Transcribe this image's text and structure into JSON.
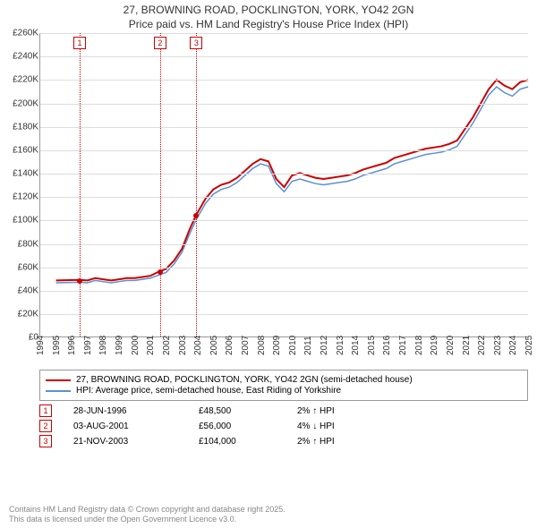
{
  "title_line1": "27, BROWNING ROAD, POCKLINGTON, YORK, YO42 2GN",
  "title_line2": "Price paid vs. HM Land Registry's House Price Index (HPI)",
  "chart": {
    "type": "line",
    "ylim": [
      0,
      260000
    ],
    "ytick_step": 20000,
    "yticks": [
      "£0",
      "£20K",
      "£40K",
      "£60K",
      "£80K",
      "£100K",
      "£120K",
      "£140K",
      "£160K",
      "£180K",
      "£200K",
      "£220K",
      "£240K",
      "£260K"
    ],
    "xyears": [
      1994,
      1995,
      1996,
      1997,
      1998,
      1999,
      2000,
      2001,
      2002,
      2003,
      2004,
      2005,
      2006,
      2007,
      2008,
      2009,
      2010,
      2011,
      2012,
      2013,
      2014,
      2015,
      2016,
      2017,
      2018,
      2019,
      2020,
      2021,
      2022,
      2023,
      2024,
      2025
    ],
    "background_color": "#ffffff",
    "grid_color": "#dddddd",
    "series": {
      "price": {
        "color": "#cc0000",
        "width": 2,
        "label": "27, BROWNING ROAD, POCKLINGTON, YORK, YO42 2GN (semi-detached house)",
        "points": [
          [
            1995.0,
            48000
          ],
          [
            1996.5,
            48500
          ],
          [
            1997.0,
            48000
          ],
          [
            1997.5,
            50000
          ],
          [
            1998.0,
            49000
          ],
          [
            1998.5,
            48000
          ],
          [
            1999.0,
            49000
          ],
          [
            1999.5,
            50000
          ],
          [
            2000.0,
            50000
          ],
          [
            2000.5,
            51000
          ],
          [
            2001.0,
            52000
          ],
          [
            2001.6,
            56000
          ],
          [
            2002.0,
            58000
          ],
          [
            2002.5,
            65000
          ],
          [
            2003.0,
            75000
          ],
          [
            2003.5,
            92000
          ],
          [
            2003.9,
            104000
          ],
          [
            2004.5,
            118000
          ],
          [
            2005.0,
            126000
          ],
          [
            2005.5,
            130000
          ],
          [
            2006.0,
            132000
          ],
          [
            2006.5,
            136000
          ],
          [
            2007.0,
            142000
          ],
          [
            2007.5,
            148000
          ],
          [
            2008.0,
            152000
          ],
          [
            2008.5,
            150000
          ],
          [
            2009.0,
            135000
          ],
          [
            2009.5,
            128000
          ],
          [
            2010.0,
            138000
          ],
          [
            2010.5,
            140000
          ],
          [
            2011.0,
            138000
          ],
          [
            2011.5,
            136000
          ],
          [
            2012.0,
            135000
          ],
          [
            2012.5,
            136000
          ],
          [
            2013.0,
            137000
          ],
          [
            2013.5,
            138000
          ],
          [
            2014.0,
            140000
          ],
          [
            2014.5,
            143000
          ],
          [
            2015.0,
            145000
          ],
          [
            2015.5,
            147000
          ],
          [
            2016.0,
            149000
          ],
          [
            2016.5,
            153000
          ],
          [
            2017.0,
            155000
          ],
          [
            2017.5,
            157000
          ],
          [
            2018.0,
            159000
          ],
          [
            2018.5,
            161000
          ],
          [
            2019.0,
            162000
          ],
          [
            2019.5,
            163000
          ],
          [
            2020.0,
            165000
          ],
          [
            2020.5,
            168000
          ],
          [
            2021.0,
            178000
          ],
          [
            2021.5,
            188000
          ],
          [
            2022.0,
            200000
          ],
          [
            2022.5,
            212000
          ],
          [
            2023.0,
            220000
          ],
          [
            2023.5,
            215000
          ],
          [
            2024.0,
            212000
          ],
          [
            2024.5,
            218000
          ],
          [
            2025.0,
            220000
          ]
        ]
      },
      "hpi": {
        "color": "#5b8fd6",
        "width": 1.5,
        "label": "HPI: Average price, semi-detached house, East Riding of Yorkshire",
        "points": [
          [
            1995.0,
            46000
          ],
          [
            1996.5,
            46500
          ],
          [
            1997.0,
            46000
          ],
          [
            1997.5,
            48000
          ],
          [
            1998.0,
            47000
          ],
          [
            1998.5,
            46000
          ],
          [
            1999.0,
            47000
          ],
          [
            1999.5,
            48000
          ],
          [
            2000.0,
            48000
          ],
          [
            2000.5,
            49000
          ],
          [
            2001.0,
            50000
          ],
          [
            2001.6,
            53000
          ],
          [
            2002.0,
            55000
          ],
          [
            2002.5,
            62000
          ],
          [
            2003.0,
            72000
          ],
          [
            2003.5,
            88000
          ],
          [
            2003.9,
            100000
          ],
          [
            2004.5,
            114000
          ],
          [
            2005.0,
            122000
          ],
          [
            2005.5,
            126000
          ],
          [
            2006.0,
            128000
          ],
          [
            2006.5,
            132000
          ],
          [
            2007.0,
            138000
          ],
          [
            2007.5,
            144000
          ],
          [
            2008.0,
            148000
          ],
          [
            2008.5,
            146000
          ],
          [
            2009.0,
            131000
          ],
          [
            2009.5,
            124000
          ],
          [
            2010.0,
            133000
          ],
          [
            2010.5,
            135000
          ],
          [
            2011.0,
            133000
          ],
          [
            2011.5,
            131000
          ],
          [
            2012.0,
            130000
          ],
          [
            2012.5,
            131000
          ],
          [
            2013.0,
            132000
          ],
          [
            2013.5,
            133000
          ],
          [
            2014.0,
            135000
          ],
          [
            2014.5,
            138000
          ],
          [
            2015.0,
            140000
          ],
          [
            2015.5,
            142000
          ],
          [
            2016.0,
            144000
          ],
          [
            2016.5,
            148000
          ],
          [
            2017.0,
            150000
          ],
          [
            2017.5,
            152000
          ],
          [
            2018.0,
            154000
          ],
          [
            2018.5,
            156000
          ],
          [
            2019.0,
            157000
          ],
          [
            2019.5,
            158000
          ],
          [
            2020.0,
            160000
          ],
          [
            2020.5,
            163000
          ],
          [
            2021.0,
            173000
          ],
          [
            2021.5,
            183000
          ],
          [
            2022.0,
            195000
          ],
          [
            2022.5,
            207000
          ],
          [
            2023.0,
            214000
          ],
          [
            2023.5,
            209000
          ],
          [
            2024.0,
            206000
          ],
          [
            2024.5,
            212000
          ],
          [
            2025.0,
            214000
          ]
        ]
      }
    },
    "markers": [
      {
        "n": "1",
        "year": 1996.5,
        "value": 48500,
        "vline_color": "#cc0000"
      },
      {
        "n": "2",
        "year": 2001.6,
        "value": 56000,
        "vline_color": "#cc0000"
      },
      {
        "n": "3",
        "year": 2003.9,
        "value": 104000,
        "vline_color": "#cc0000"
      }
    ]
  },
  "sales": [
    {
      "n": "1",
      "date": "28-JUN-1996",
      "price": "£48,500",
      "change": "2% ↑ HPI"
    },
    {
      "n": "2",
      "date": "03-AUG-2001",
      "price": "£56,000",
      "change": "4% ↓ HPI"
    },
    {
      "n": "3",
      "date": "21-NOV-2003",
      "price": "£104,000",
      "change": "2% ↑ HPI"
    }
  ],
  "footer_line1": "Contains HM Land Registry data © Crown copyright and database right 2025.",
  "footer_line2": "This data is licensed under the Open Government Licence v3.0."
}
